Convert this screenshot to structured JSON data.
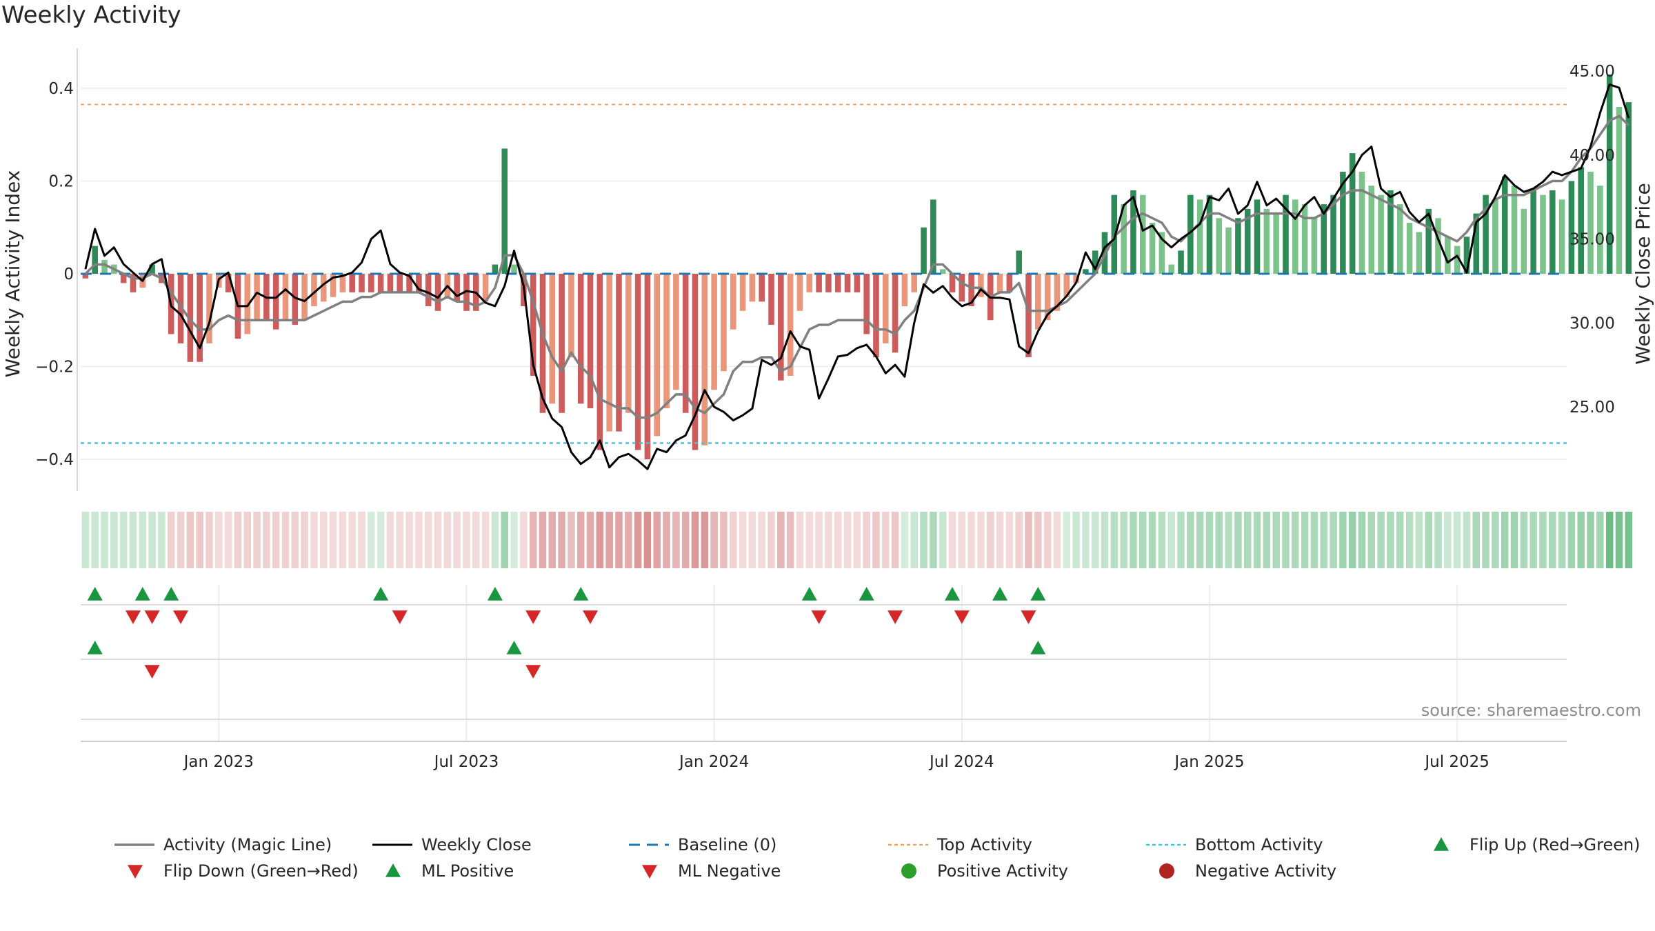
{
  "title": "Weekly Activity",
  "source": "source: sharemaestro.com",
  "colors": {
    "pos_dark": "#2e8b57",
    "pos_light": "#7cc38b",
    "neg_dark": "#cd5c5c",
    "neg_light": "#e9967a",
    "magic_line": "#808080",
    "close_line": "#000000",
    "baseline": "#1f77b4",
    "top_line": "#f4a460",
    "bottom_line": "#40c4e0",
    "marker_up": "#1a9641",
    "marker_down": "#d62728",
    "positive_dot": "#2ca02c",
    "negative_dot": "#b22222"
  },
  "chart_data": {
    "type": "bar",
    "title": "Weekly Activity",
    "ylabel": "Weekly Activity Index",
    "y2label": "Weekly Close Price",
    "ylim": [
      -0.47,
      0.44
    ],
    "y2lim": [
      20.0,
      45.8
    ],
    "yticks": [
      {
        "v": 0.4,
        "label": "0.4"
      },
      {
        "v": 0.2,
        "label": "0.2"
      },
      {
        "v": 0,
        "label": "0"
      },
      {
        "v": -0.2,
        "label": "−0.2"
      },
      {
        "v": -0.4,
        "label": "−0.4"
      }
    ],
    "y2ticks": [
      {
        "v": 45,
        "label": "45.00"
      },
      {
        "v": 40,
        "label": "40.00"
      },
      {
        "v": 35,
        "label": "35.00"
      },
      {
        "v": 30,
        "label": "30.00"
      },
      {
        "v": 25,
        "label": "25.00"
      }
    ],
    "xticks": [
      {
        "week": 14,
        "label": "Jan 2023"
      },
      {
        "week": 40,
        "label": "Jul 2023"
      },
      {
        "week": 66,
        "label": "Jan 2024"
      },
      {
        "week": 92,
        "label": "Jul 2024"
      },
      {
        "week": 118,
        "label": "Jan 2025"
      },
      {
        "week": 144,
        "label": "Jul 2025"
      }
    ],
    "week_count": 156,
    "top_activity": 0.365,
    "bottom_activity": -0.365,
    "activity": [
      -0.01,
      0.06,
      0.03,
      0.02,
      -0.02,
      -0.04,
      -0.03,
      0.02,
      -0.02,
      -0.13,
      -0.15,
      -0.19,
      -0.19,
      -0.15,
      -0.03,
      -0.04,
      -0.14,
      -0.13,
      -0.1,
      -0.1,
      -0.12,
      -0.1,
      -0.11,
      -0.1,
      -0.07,
      -0.06,
      -0.05,
      -0.04,
      -0.04,
      -0.04,
      -0.04,
      -0.04,
      -0.04,
      -0.04,
      -0.04,
      -0.04,
      -0.07,
      -0.08,
      -0.05,
      -0.06,
      -0.08,
      -0.08,
      -0.06,
      0.02,
      0.27,
      0.02,
      -0.07,
      -0.22,
      -0.3,
      -0.28,
      -0.3,
      -0.18,
      -0.28,
      -0.29,
      -0.38,
      -0.34,
      -0.34,
      -0.3,
      -0.38,
      -0.4,
      -0.35,
      -0.29,
      -0.25,
      -0.3,
      -0.38,
      -0.37,
      -0.25,
      -0.21,
      -0.12,
      -0.08,
      -0.06,
      -0.06,
      -0.11,
      -0.23,
      -0.22,
      -0.08,
      -0.04,
      -0.04,
      -0.04,
      -0.04,
      -0.04,
      -0.04,
      -0.13,
      -0.18,
      -0.15,
      -0.17,
      -0.07,
      -0.04,
      0.1,
      0.16,
      0.01,
      -0.04,
      -0.06,
      -0.07,
      -0.05,
      -0.1,
      -0.04,
      -0.04,
      0.05,
      -0.18,
      -0.12,
      -0.1,
      -0.08,
      -0.05,
      -0.02,
      0.01,
      0.05,
      0.09,
      0.17,
      0.15,
      0.18,
      0.17,
      0.11,
      0.09,
      0.02,
      0.05,
      0.17,
      0.16,
      0.17,
      0.12,
      0.1,
      0.12,
      0.14,
      0.16,
      0.14,
      0.13,
      0.17,
      0.16,
      0.15,
      0.12,
      0.15,
      0.17,
      0.22,
      0.26,
      0.22,
      0.19,
      0.17,
      0.18,
      0.15,
      0.11,
      0.09,
      0.14,
      0.12,
      0.08,
      0.06,
      0.08,
      0.13,
      0.17,
      0.16,
      0.21,
      0.19,
      0.14,
      0.18,
      0.17,
      0.18,
      0.16,
      0.2,
      0.23,
      0.22,
      0.19,
      0.43,
      0.36,
      0.37
    ],
    "magic_line": [
      0.0,
      0.02,
      0.02,
      0.01,
      0.0,
      -0.01,
      -0.01,
      0.0,
      -0.01,
      -0.04,
      -0.07,
      -0.1,
      -0.12,
      -0.12,
      -0.1,
      -0.09,
      -0.1,
      -0.1,
      -0.1,
      -0.1,
      -0.1,
      -0.1,
      -0.1,
      -0.1,
      -0.09,
      -0.08,
      -0.07,
      -0.06,
      -0.06,
      -0.05,
      -0.05,
      -0.04,
      -0.04,
      -0.04,
      -0.04,
      -0.04,
      -0.05,
      -0.06,
      -0.05,
      -0.06,
      -0.06,
      -0.07,
      -0.06,
      -0.03,
      0.04,
      0.04,
      0.0,
      -0.06,
      -0.13,
      -0.18,
      -0.21,
      -0.17,
      -0.2,
      -0.22,
      -0.27,
      -0.28,
      -0.29,
      -0.29,
      -0.31,
      -0.31,
      -0.3,
      -0.28,
      -0.26,
      -0.26,
      -0.29,
      -0.3,
      -0.28,
      -0.26,
      -0.21,
      -0.19,
      -0.19,
      -0.18,
      -0.18,
      -0.21,
      -0.2,
      -0.16,
      -0.12,
      -0.11,
      -0.11,
      -0.1,
      -0.1,
      -0.1,
      -0.1,
      -0.12,
      -0.12,
      -0.13,
      -0.1,
      -0.08,
      -0.03,
      0.02,
      0.02,
      0.0,
      -0.02,
      -0.03,
      -0.03,
      -0.05,
      -0.04,
      -0.04,
      -0.02,
      -0.08,
      -0.08,
      -0.08,
      -0.07,
      -0.06,
      -0.04,
      -0.02,
      0.0,
      0.04,
      0.08,
      0.1,
      0.12,
      0.13,
      0.12,
      0.11,
      0.08,
      0.07,
      0.09,
      0.11,
      0.13,
      0.13,
      0.12,
      0.11,
      0.12,
      0.13,
      0.13,
      0.13,
      0.13,
      0.13,
      0.12,
      0.12,
      0.13,
      0.15,
      0.17,
      0.18,
      0.18,
      0.17,
      0.16,
      0.15,
      0.14,
      0.12,
      0.11,
      0.1,
      0.09,
      0.08,
      0.07,
      0.09,
      0.12,
      0.14,
      0.16,
      0.17,
      0.17,
      0.17,
      0.18,
      0.19,
      0.2,
      0.2,
      0.22,
      0.25,
      0.27,
      0.3,
      0.33,
      0.34,
      0.32
    ],
    "close": [
      33.2,
      35.6,
      34.0,
      34.5,
      33.5,
      33.0,
      32.5,
      33.5,
      33.8,
      31.0,
      30.5,
      29.5,
      28.5,
      30.0,
      32.6,
      33.0,
      31.0,
      31.0,
      31.8,
      31.5,
      31.5,
      32.0,
      31.5,
      31.3,
      31.8,
      32.3,
      32.7,
      32.8,
      33.0,
      33.6,
      35.0,
      35.5,
      33.5,
      33.0,
      32.8,
      32.0,
      31.8,
      31.5,
      32.2,
      31.6,
      31.9,
      31.8,
      31.2,
      31.0,
      32.2,
      34.3,
      32.2,
      27.5,
      25.5,
      24.3,
      23.8,
      22.3,
      21.6,
      22.0,
      23.0,
      21.4,
      22.0,
      22.2,
      21.8,
      21.3,
      22.5,
      22.3,
      23.0,
      23.3,
      24.5,
      26.0,
      25.0,
      24.7,
      24.2,
      24.5,
      24.9,
      27.8,
      27.5,
      27.9,
      29.5,
      28.6,
      28.4,
      25.5,
      26.7,
      28.0,
      28.1,
      28.5,
      28.7,
      28.0,
      27.0,
      27.5,
      26.8,
      30.0,
      32.3,
      31.8,
      32.2,
      31.5,
      31.0,
      31.2,
      32.0,
      31.5,
      31.5,
      31.4,
      28.6,
      28.2,
      29.5,
      30.5,
      31.0,
      31.6,
      32.4,
      34.2,
      33.2,
      34.5,
      35.0,
      37.0,
      37.5,
      35.5,
      35.8,
      35.0,
      34.5,
      35.0,
      35.4,
      35.9,
      37.5,
      37.3,
      38.0,
      36.5,
      37.0,
      38.4,
      37.0,
      37.4,
      36.8,
      36.2,
      37.0,
      37.5,
      36.5,
      37.4,
      38.3,
      39.0,
      40.0,
      40.5,
      38.0,
      37.5,
      37.8,
      36.6,
      36.0,
      36.5,
      35.0,
      33.6,
      34.0,
      33.0,
      36.0,
      36.5,
      37.5,
      38.8,
      38.2,
      37.8,
      38.0,
      38.4,
      39.0,
      38.8,
      39.0,
      39.2,
      40.5,
      42.5,
      44.2,
      44.0,
      42.2
    ],
    "heat_values": [
      0.25,
      0.25,
      0.25,
      0.25,
      0.25,
      0.25,
      0.25,
      0.25,
      0.25,
      -0.25,
      -0.25,
      -0.3,
      -0.3,
      -0.25,
      -0.15,
      -0.15,
      -0.25,
      -0.25,
      -0.25,
      -0.25,
      -0.25,
      -0.25,
      -0.25,
      -0.25,
      -0.2,
      -0.15,
      -0.15,
      -0.15,
      -0.15,
      -0.15,
      0.2,
      0.2,
      -0.15,
      -0.15,
      -0.15,
      -0.15,
      -0.2,
      -0.2,
      -0.15,
      -0.15,
      -0.2,
      -0.2,
      -0.15,
      0.25,
      0.45,
      0.2,
      -0.2,
      -0.4,
      -0.45,
      -0.45,
      -0.45,
      -0.35,
      -0.45,
      -0.45,
      -0.55,
      -0.5,
      -0.5,
      -0.45,
      -0.55,
      -0.6,
      -0.5,
      -0.45,
      -0.4,
      -0.45,
      -0.55,
      -0.55,
      -0.4,
      -0.35,
      -0.25,
      -0.2,
      -0.15,
      -0.15,
      -0.25,
      -0.4,
      -0.35,
      -0.2,
      -0.15,
      -0.15,
      -0.15,
      -0.15,
      -0.15,
      -0.15,
      -0.25,
      -0.3,
      -0.25,
      -0.3,
      0.2,
      0.25,
      0.35,
      0.4,
      0.25,
      -0.15,
      -0.2,
      -0.2,
      -0.15,
      -0.25,
      -0.2,
      -0.2,
      -0.25,
      -0.35,
      -0.3,
      -0.25,
      -0.2,
      0.2,
      0.25,
      0.25,
      0.25,
      0.3,
      0.35,
      0.35,
      0.4,
      0.4,
      0.4,
      0.35,
      0.25,
      0.35,
      0.4,
      0.4,
      0.4,
      0.4,
      0.35,
      0.4,
      0.4,
      0.4,
      0.4,
      0.4,
      0.4,
      0.4,
      0.4,
      0.4,
      0.4,
      0.4,
      0.45,
      0.5,
      0.45,
      0.4,
      0.4,
      0.4,
      0.4,
      0.35,
      0.3,
      0.4,
      0.35,
      0.25,
      0.25,
      0.3,
      0.4,
      0.4,
      0.4,
      0.45,
      0.45,
      0.4,
      0.4,
      0.4,
      0.4,
      0.4,
      0.45,
      0.5,
      0.5,
      0.45,
      0.7,
      0.65,
      0.65
    ],
    "signals": {
      "row1_up": [
        1,
        6,
        9,
        31,
        43,
        52,
        76,
        82,
        91,
        96,
        100
      ],
      "row1_down": [
        5,
        7,
        10,
        33,
        47,
        53,
        77,
        85,
        92,
        99
      ],
      "row2_up": [
        1,
        45,
        100
      ],
      "row2_down": [
        7,
        47
      ]
    },
    "legend": [
      {
        "key": "magic",
        "label": "Activity (Magic Line)"
      },
      {
        "key": "close",
        "label": "Weekly Close"
      },
      {
        "key": "baseline",
        "label": "Baseline (0)"
      },
      {
        "key": "top",
        "label": "Top Activity"
      },
      {
        "key": "bottom",
        "label": "Bottom Activity"
      },
      {
        "key": "flip_up",
        "label": "Flip Up (Red→Green)"
      },
      {
        "key": "flip_down",
        "label": "Flip Down (Green→Red)"
      },
      {
        "key": "ml_pos",
        "label": "ML Positive"
      },
      {
        "key": "ml_neg",
        "label": "ML Negative"
      },
      {
        "key": "pos_act",
        "label": "Positive Activity"
      },
      {
        "key": "neg_act",
        "label": "Negative Activity"
      }
    ]
  }
}
